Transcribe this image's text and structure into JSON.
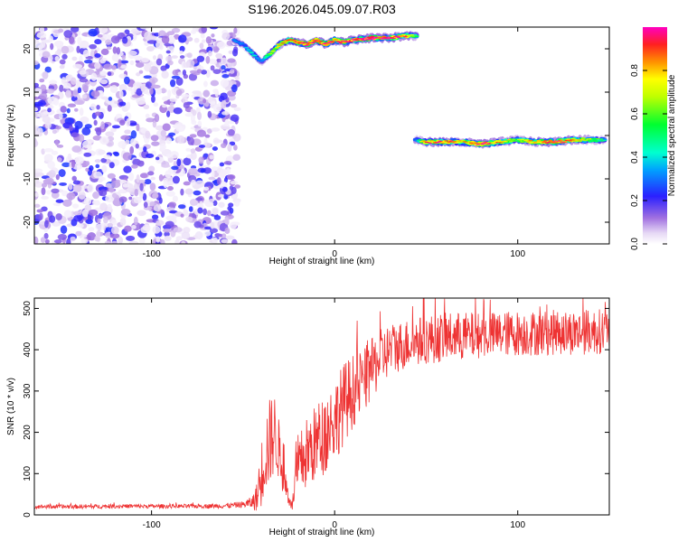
{
  "title": "S196.2026.045.09.07.R03",
  "chart_data": [
    {
      "type": "heatmap",
      "id": "spectrogram",
      "xlabel": "Height of straight line (km)",
      "ylabel": "Frequency (Hz)",
      "xlim": [
        -164,
        150
      ],
      "ylim": [
        -25,
        25
      ],
      "xticks": [
        -100,
        0,
        100
      ],
      "xtick_labels": [
        "-100",
        "0",
        "100"
      ],
      "yticks": [
        -20,
        -10,
        0,
        10,
        20
      ],
      "ytick_labels": [
        "-20",
        "-10",
        "0",
        "10",
        "20"
      ],
      "noise_region": {
        "x_range": [
          -164,
          -53
        ],
        "y_range": [
          -25,
          25
        ],
        "amplitude_range": [
          0.02,
          0.25
        ]
      },
      "ridges": [
        {
          "name": "upper echo",
          "x": [
            -55,
            -50,
            -45,
            -40,
            -35,
            -30,
            -25,
            -20,
            -15,
            -10,
            -5,
            0,
            5,
            10,
            20,
            30,
            40,
            45
          ],
          "y": [
            22,
            21,
            19,
            17,
            19,
            21,
            22,
            21.5,
            21,
            22,
            21,
            22,
            21.5,
            22,
            22.5,
            22.5,
            23,
            23
          ],
          "amplitude": [
            0.35,
            0.3,
            0.45,
            0.3,
            0.6,
            0.75,
            0.85,
            0.9,
            0.95,
            0.9,
            0.95,
            0.9,
            0.95,
            0.95,
            1.0,
            0.95,
            0.85,
            0.5
          ]
        },
        {
          "name": "lower echo",
          "x": [
            44,
            50,
            60,
            70,
            80,
            90,
            100,
            110,
            120,
            130,
            140,
            148
          ],
          "y": [
            -1,
            -1.5,
            -1.5,
            -1.5,
            -2,
            -1.5,
            -1,
            -1.5,
            -1.5,
            -1,
            -1,
            -1
          ],
          "amplitude": [
            0.3,
            0.85,
            0.9,
            0.75,
            0.95,
            0.8,
            0.6,
            0.85,
            0.95,
            0.8,
            0.65,
            0.45
          ]
        }
      ],
      "colorbar": {
        "label": "Normalized spectral amplitude",
        "range": [
          0,
          1
        ],
        "ticks": [
          0,
          0.2,
          0.4,
          0.6,
          0.8
        ],
        "tick_labels": [
          "0.0",
          "0.2",
          "0.4",
          "0.6",
          "0.8"
        ]
      }
    },
    {
      "type": "line",
      "id": "snr",
      "xlabel": "Height of straight line (km)",
      "ylabel": "SNR (10 * v/v)",
      "xlim": [
        -164,
        150
      ],
      "ylim": [
        0,
        525
      ],
      "xticks": [
        -100,
        0,
        100
      ],
      "xtick_labels": [
        "-100",
        "0",
        "100"
      ],
      "yticks": [
        0,
        100,
        200,
        300,
        400,
        500
      ],
      "ytick_labels": [
        "0",
        "100",
        "200",
        "300",
        "400",
        "500"
      ],
      "series": [
        {
          "name": "SNR",
          "color": "#ee3333",
          "x": [
            -164,
            -140,
            -120,
            -100,
            -80,
            -60,
            -50,
            -45,
            -42,
            -40,
            -38,
            -35,
            -33,
            -31,
            -29,
            -27,
            -25,
            -23,
            -22,
            -20,
            -18,
            -15,
            -10,
            -5,
            0,
            5,
            10,
            15,
            20,
            25,
            30,
            40,
            50,
            60,
            70,
            80,
            90,
            100,
            110,
            120,
            130,
            140,
            150
          ],
          "y": [
            20,
            20,
            21,
            21,
            21,
            22,
            25,
            30,
            45,
            100,
            150,
            180,
            200,
            170,
            120,
            80,
            40,
            20,
            70,
            100,
            130,
            150,
            175,
            200,
            230,
            270,
            300,
            320,
            350,
            380,
            400,
            415,
            425,
            430,
            432,
            435,
            438,
            440,
            440,
            442,
            442,
            444,
            445
          ],
          "spread": [
            5,
            5,
            5,
            5,
            5,
            6,
            8,
            15,
            40,
            80,
            100,
            110,
            100,
            80,
            60,
            40,
            20,
            10,
            50,
            70,
            80,
            90,
            95,
            100,
            100,
            100,
            90,
            80,
            75,
            70,
            65,
            60,
            60,
            60,
            60,
            55,
            55,
            55,
            55,
            55,
            55,
            55,
            55
          ]
        }
      ]
    }
  ]
}
